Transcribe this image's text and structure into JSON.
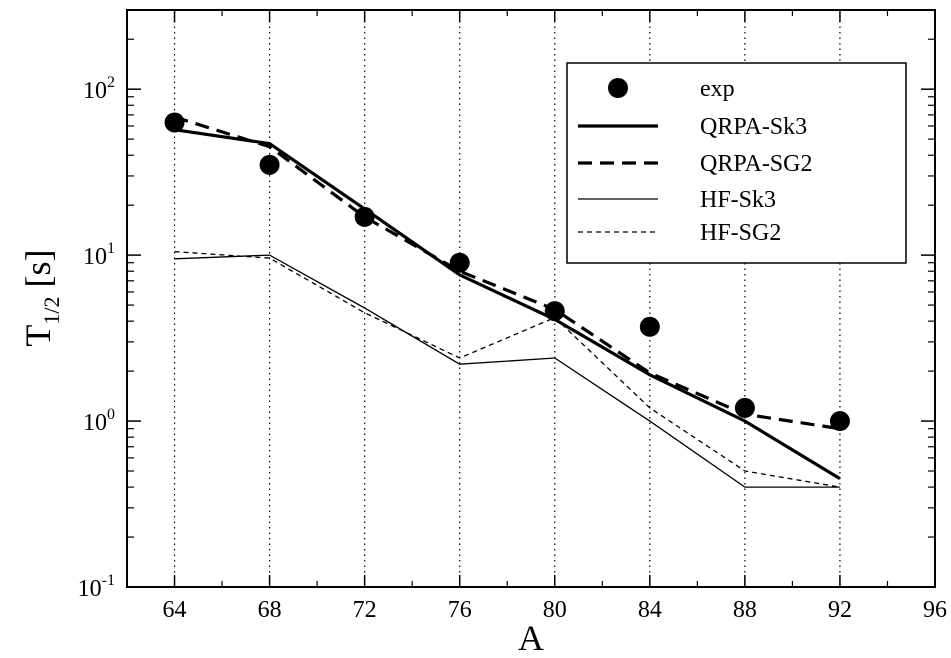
{
  "chart_data": {
    "type": "line",
    "xlabel": "A",
    "ylabel": {
      "main": "T",
      "sub": "1/2",
      "unit": "[s]"
    },
    "xlim": [
      62,
      96
    ],
    "ylim": [
      0.1,
      300
    ],
    "yscale": "log",
    "x_ticks": [
      "64",
      "68",
      "72",
      "76",
      "80",
      "84",
      "88",
      "92",
      "96"
    ],
    "y_ticks": [
      {
        "value": 0.1,
        "base": "10",
        "exp": "-1"
      },
      {
        "value": 1,
        "base": "10",
        "exp": "0"
      },
      {
        "value": 10,
        "base": "10",
        "exp": "1"
      },
      {
        "value": 100,
        "base": "10",
        "exp": "2"
      }
    ],
    "vertical_gridlines_at": [
      64,
      68,
      72,
      76,
      80,
      84,
      88,
      92
    ],
    "grid": "dotted vertical lines at data x values",
    "legend_position": "top-right",
    "series": [
      {
        "name": "exp",
        "style": "markers",
        "x": [
          64,
          68,
          72,
          76,
          80,
          84,
          88,
          92
        ],
        "y": [
          63,
          35,
          17,
          9.0,
          4.6,
          3.7,
          1.2,
          1.0
        ]
      },
      {
        "name": "QRPA-Sk3",
        "style": "thick-solid",
        "x": [
          64,
          68,
          72,
          76,
          80,
          84,
          88,
          92
        ],
        "y": [
          57,
          47,
          19,
          7.6,
          4.1,
          1.9,
          1.0,
          0.45
        ]
      },
      {
        "name": "QRPA-SG2",
        "style": "thick-dashed",
        "x": [
          64,
          68,
          72,
          76,
          80,
          84,
          88,
          92
        ],
        "y": [
          68,
          45,
          17,
          8.0,
          4.7,
          1.95,
          1.1,
          0.9
        ]
      },
      {
        "name": "HF-Sk3",
        "style": "thin-solid",
        "x": [
          64,
          68,
          72,
          76,
          80,
          84,
          88,
          92
        ],
        "y": [
          9.5,
          10.0,
          4.8,
          2.2,
          2.4,
          1.0,
          0.4,
          0.4
        ]
      },
      {
        "name": "HF-SG2",
        "style": "thin-dashed",
        "x": [
          64,
          68,
          72,
          76,
          80,
          84,
          88,
          92
        ],
        "y": [
          10.5,
          9.6,
          4.5,
          2.4,
          4.2,
          1.2,
          0.5,
          0.4
        ]
      }
    ]
  }
}
